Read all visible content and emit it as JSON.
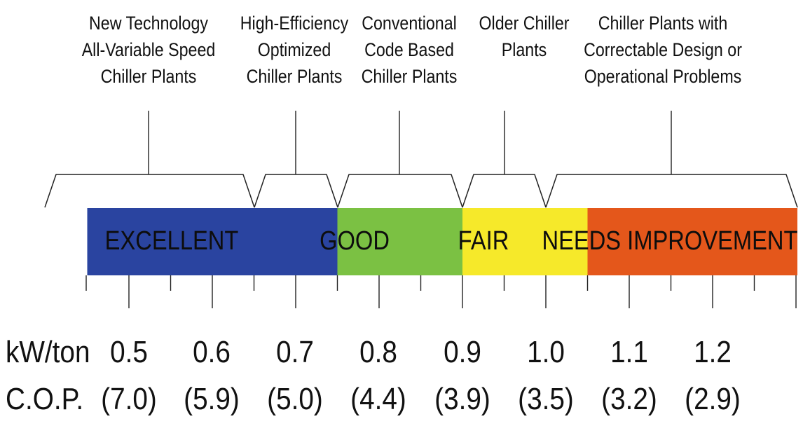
{
  "categories": [
    {
      "id": "new-tech",
      "label": "New Technology\nAll-Variable Speed\nChiller Plants"
    },
    {
      "id": "high-eff",
      "label": "High-Efficiency\nOptimized\nChiller Plants"
    },
    {
      "id": "conventional",
      "label": "Conventional\nCode Based\nChiller Plants"
    },
    {
      "id": "older",
      "label": "Older Chiller\nPlants"
    },
    {
      "id": "problems",
      "label": "Chiller Plants with\nCorrectable Design or\nOperational Problems"
    }
  ],
  "ratings": [
    {
      "id": "excellent",
      "label": "EXCELLENT",
      "color": "#2a44a0",
      "from": 0.45,
      "to": 0.75
    },
    {
      "id": "good",
      "label": "GOOD",
      "color": "#7bc143",
      "from": 0.75,
      "to": 0.9
    },
    {
      "id": "fair",
      "label": "FAIR",
      "color": "#f6e92a",
      "from": 0.9,
      "to": 1.05
    },
    {
      "id": "needs-improvement",
      "label": "NEEDS IMPROVEMENT",
      "color": "#e4571b",
      "from": 1.05,
      "to": 1.35
    }
  ],
  "scale": {
    "kw_label": "kW/ton",
    "cop_label": "C.O.P.",
    "points": [
      {
        "kw": "0.5",
        "cop": "(7.0)"
      },
      {
        "kw": "0.6",
        "cop": "(5.9)"
      },
      {
        "kw": "0.7",
        "cop": "(5.0)"
      },
      {
        "kw": "0.8",
        "cop": "(4.4)"
      },
      {
        "kw": "0.9",
        "cop": "(3.9)"
      },
      {
        "kw": "1.0",
        "cop": "(3.5)"
      },
      {
        "kw": "1.1",
        "cop": "(3.2)"
      },
      {
        "kw": "1.2",
        "cop": "(2.9)"
      }
    ]
  }
}
